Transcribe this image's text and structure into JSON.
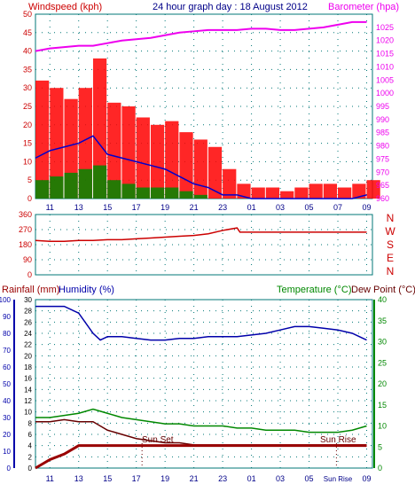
{
  "header": {
    "left_label": "Windspeed (kph)",
    "center_label": "24 hour graph day : 18 August 2012",
    "right_label": "Barometer (hpa)"
  },
  "labels": {
    "rainfall": "Rainfall (mm)",
    "humidity": "Humidity (%)",
    "temperature": "Temperature (°C)",
    "dewpoint": "Dew Point (°C)",
    "sun_set": "Sun Set",
    "sun_rise": "Sun Rise",
    "sun_rise_axis": "Sun Rise"
  },
  "colors": {
    "wind_max": "#ff0000",
    "wind_avg": "#0000cc",
    "wind_min": "#008800",
    "barometer": "#ee00ee",
    "direction": "#cc0000",
    "humidity": "#0000aa",
    "temperature": "#008800",
    "dewpoint": "#660000",
    "rainfall": "#990000",
    "grid": "#007777"
  },
  "chart_data": [
    {
      "type": "line",
      "name": "wind_barometer",
      "x_hours": [
        10,
        11,
        12,
        13,
        14,
        15,
        16,
        17,
        18,
        19,
        20,
        21,
        22,
        23,
        24,
        25,
        26,
        27,
        28,
        29,
        30,
        31,
        32,
        33
      ],
      "x_ticks": [
        "11",
        "13",
        "15",
        "17",
        "19",
        "21",
        "23",
        "01",
        "03",
        "05",
        "07",
        "09"
      ],
      "ylim_left": [
        0,
        50
      ],
      "y_ticks_left": [
        0,
        5,
        10,
        15,
        20,
        25,
        30,
        35,
        40,
        45,
        50
      ],
      "ylim_right": [
        960,
        1030
      ],
      "y_ticks_right": [
        960,
        965,
        970,
        975,
        980,
        985,
        990,
        995,
        1000,
        1005,
        1010,
        1015,
        1020,
        1025
      ],
      "series": [
        {
          "key": "wind_max",
          "values": [
            32,
            30,
            27,
            30,
            38,
            26,
            25,
            22,
            20,
            21,
            18,
            16,
            14,
            8,
            4,
            3,
            3,
            2,
            3,
            4,
            4,
            3,
            4,
            5
          ]
        },
        {
          "key": "wind_avg",
          "values": [
            11,
            13,
            14,
            15,
            17,
            12,
            11,
            10,
            9,
            8,
            6,
            4,
            3,
            1,
            1,
            0,
            0,
            0,
            0,
            0,
            0,
            0,
            0,
            1
          ]
        },
        {
          "key": "wind_min",
          "values": [
            5,
            6,
            7,
            8,
            9,
            5,
            4,
            3,
            3,
            3,
            2,
            1,
            0,
            0,
            0,
            0,
            0,
            0,
            0,
            0,
            0,
            0,
            0,
            0
          ]
        },
        {
          "key": "barometer",
          "axis": "right",
          "values": [
            1016,
            1017,
            1017.5,
            1018,
            1018,
            1019,
            1020,
            1020.5,
            1021,
            1022,
            1023,
            1023.5,
            1024,
            1024,
            1024,
            1024.5,
            1024.5,
            1024,
            1024,
            1024.5,
            1025,
            1026,
            1027,
            1027
          ]
        }
      ]
    },
    {
      "type": "line",
      "name": "wind_direction",
      "x_hours": [
        10,
        11,
        12,
        13,
        14,
        15,
        16,
        17,
        18,
        19,
        20,
        21,
        22,
        23,
        24,
        24.2,
        25,
        26,
        27,
        28,
        29,
        30,
        31,
        32,
        33
      ],
      "ylim": [
        0,
        360
      ],
      "y_ticks": [
        0,
        90,
        180,
        270,
        360
      ],
      "compass": [
        "N",
        "W",
        "S",
        "E",
        "N"
      ],
      "series": [
        {
          "key": "direction",
          "values": [
            205,
            200,
            200,
            205,
            205,
            210,
            210,
            215,
            220,
            225,
            230,
            235,
            245,
            265,
            280,
            255,
            255,
            255,
            255,
            255,
            255,
            255,
            255,
            255,
            255
          ]
        }
      ]
    },
    {
      "type": "line",
      "name": "temp_humidity_rain",
      "x_hours": [
        10,
        11,
        12,
        13,
        14,
        14.5,
        15,
        16,
        17,
        18,
        19,
        20,
        21,
        22,
        23,
        24,
        25,
        26,
        27,
        28,
        29,
        30,
        31,
        32,
        33
      ],
      "ylim_humidity": [
        0,
        100
      ],
      "y_ticks_humidity": [
        0,
        10,
        20,
        30,
        40,
        50,
        60,
        70,
        80,
        90,
        100
      ],
      "ylim_rain": [
        0,
        30
      ],
      "y_ticks_rain": [
        0,
        2,
        4,
        6,
        8,
        10,
        12,
        14,
        16,
        18,
        20,
        22,
        24,
        26,
        28,
        30
      ],
      "ylim_temp": [
        0,
        40
      ],
      "y_ticks_temp": [
        0,
        5,
        10,
        15,
        20,
        25,
        30,
        35,
        40
      ],
      "series": [
        {
          "key": "humidity",
          "values": [
            96,
            96,
            96,
            92,
            80,
            76,
            78,
            78,
            77,
            76,
            76,
            77,
            77,
            78,
            78,
            78,
            79,
            80,
            82,
            84,
            84,
            83,
            82,
            80,
            76
          ]
        },
        {
          "key": "temperature",
          "values": [
            12,
            12,
            12.5,
            13,
            14,
            13.5,
            13,
            12,
            11.5,
            11,
            10.5,
            10.5,
            10,
            10,
            10,
            9.5,
            9.5,
            9,
            9,
            9,
            8.5,
            8.5,
            8.5,
            9,
            10
          ]
        },
        {
          "key": "dewpoint",
          "values": [
            11,
            11,
            11.5,
            11,
            11,
            10,
            9,
            8,
            7,
            6.5,
            6,
            6,
            5.5,
            5.5,
            5.5,
            5.5,
            5.5,
            5.5,
            5.5,
            5.5,
            5.5,
            5.5,
            5.5,
            5.5,
            5.5
          ]
        },
        {
          "key": "rainfall",
          "values": [
            0,
            1.5,
            2.5,
            4,
            4,
            4,
            4,
            4,
            4,
            4,
            4,
            4,
            4,
            4,
            4,
            4,
            4,
            4,
            4,
            4,
            4,
            4,
            4,
            4,
            4
          ]
        }
      ],
      "x_ticks": [
        "11",
        "13",
        "15",
        "17",
        "19",
        "21",
        "23",
        "01",
        "03",
        "05",
        "Sun Rise",
        "09"
      ]
    }
  ]
}
